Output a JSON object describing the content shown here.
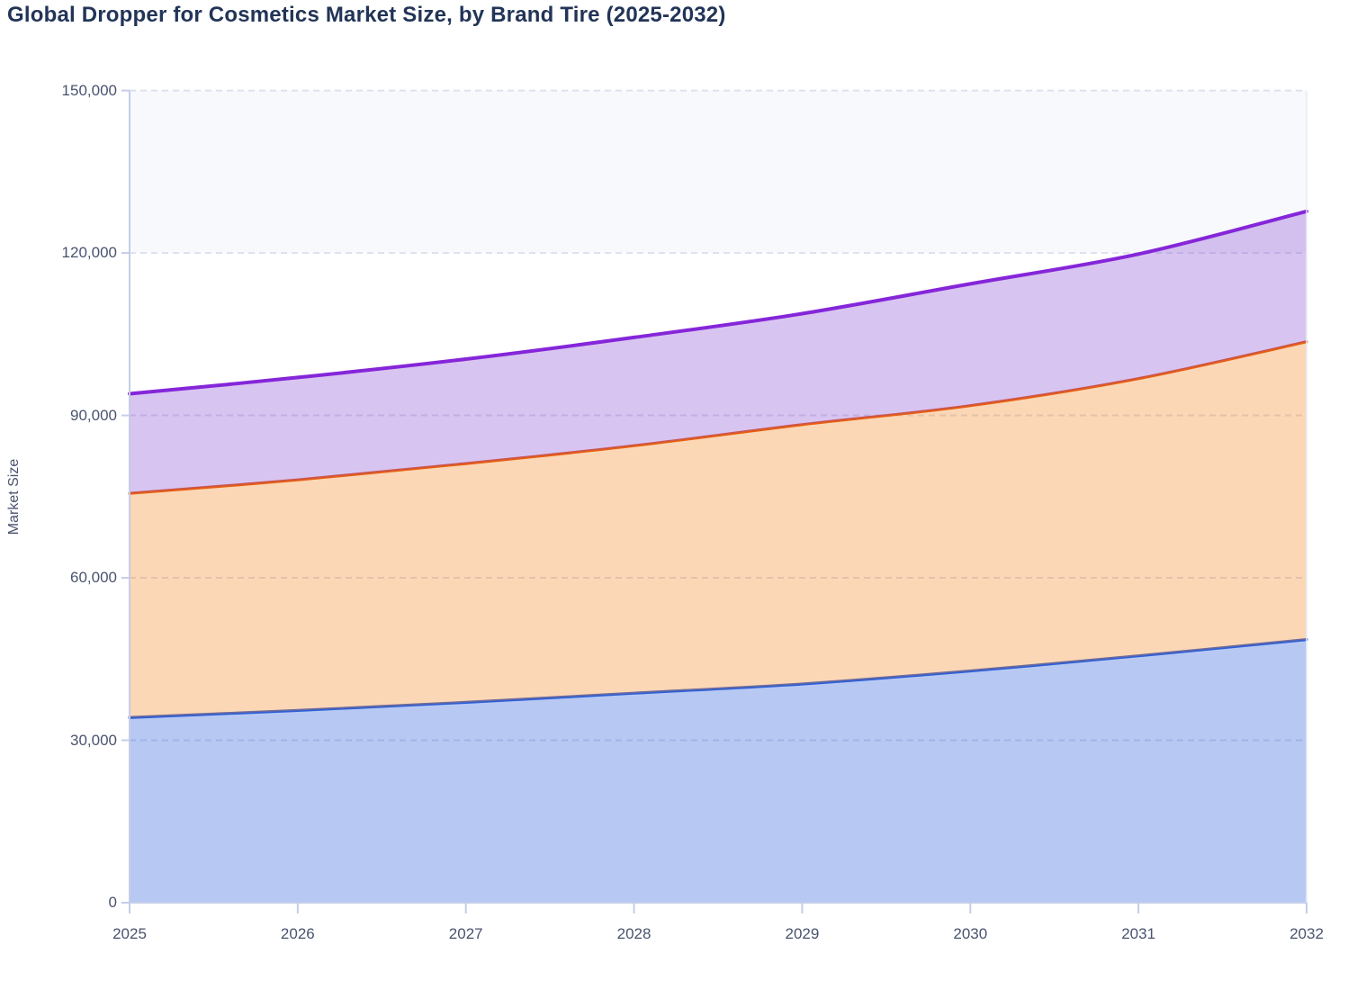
{
  "title": "Global Dropper for Cosmetics Market Size, by Brand Tire (2025-2032)",
  "chart_data": {
    "type": "area",
    "stacked": true,
    "title": "Global Dropper for Cosmetics Market Size, by Brand Tire (2025-2032)",
    "xlabel": "",
    "ylabel": "Market Size",
    "x": [
      2025,
      2026,
      2027,
      2028,
      2029,
      2030,
      2031,
      2032
    ],
    "x_tick_labels": [
      "2025",
      "2026",
      "2027",
      "2028",
      "2029",
      "2030",
      "2031",
      "2032"
    ],
    "ylim": [
      0,
      150000
    ],
    "y_ticks": [
      0,
      30000,
      60000,
      90000,
      120000,
      150000
    ],
    "y_tick_labels": [
      "0",
      "30,000",
      "60,000",
      "90,000",
      "120,000",
      "150,000"
    ],
    "grid": "horizontal dashed",
    "legend": "none",
    "series": [
      {
        "name": "blue (bottom band)",
        "values": [
          34200,
          35500,
          37000,
          38700,
          40400,
          42800,
          45600,
          48600
        ],
        "cumulative": [
          34200,
          35500,
          37000,
          38700,
          40400,
          42800,
          45600,
          48600
        ],
        "line_color": "#2d5fd8",
        "fill_color": "rgba(45,95,216,0.34)"
      },
      {
        "name": "orange (middle band)",
        "values": [
          41400,
          42600,
          44100,
          45700,
          47900,
          49000,
          51200,
          55000
        ],
        "cumulative": [
          75600,
          78100,
          81100,
          84400,
          88300,
          91800,
          96800,
          103600
        ],
        "line_color": "#ea5e0d",
        "fill_color": "rgba(243,130,27,0.32)"
      },
      {
        "name": "purple (top band)",
        "values": [
          18400,
          18900,
          19300,
          20000,
          20500,
          22500,
          23000,
          24100
        ],
        "cumulative": [
          94000,
          97000,
          100400,
          104400,
          108800,
          114300,
          119800,
          127700
        ],
        "line_color": "#8526d9",
        "fill_color": "rgba(133,71,211,0.32)"
      }
    ],
    "colors": {
      "band_120k_150k": "#f8f9fc",
      "gridline": "#dde1ec",
      "axis": "#c5cde9",
      "tick_text": "#49536f",
      "title_text": "#223457"
    }
  }
}
